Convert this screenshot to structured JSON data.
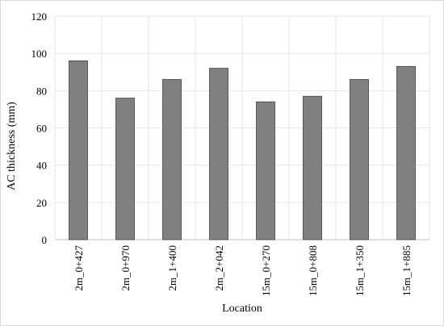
{
  "chart_data": {
    "type": "bar",
    "title": "",
    "xlabel": "Location",
    "ylabel": "AC thickness (mm)",
    "categories": [
      "2m_0+427",
      "2m_0+970",
      "2m_1+400",
      "2m_2+042",
      "15m_0+270",
      "15m_0+808",
      "15m_1+350",
      "15m_1+885"
    ],
    "values": [
      96,
      76,
      86,
      92,
      74,
      77,
      86,
      93
    ],
    "ylim": [
      0,
      120
    ],
    "yticks": [
      0,
      20,
      40,
      60,
      80,
      100,
      120
    ],
    "grid": true,
    "legend": "none",
    "colors": {
      "bar_fill": "#808080",
      "bar_stroke": "#404040",
      "grid": "#e6e6e6"
    }
  }
}
